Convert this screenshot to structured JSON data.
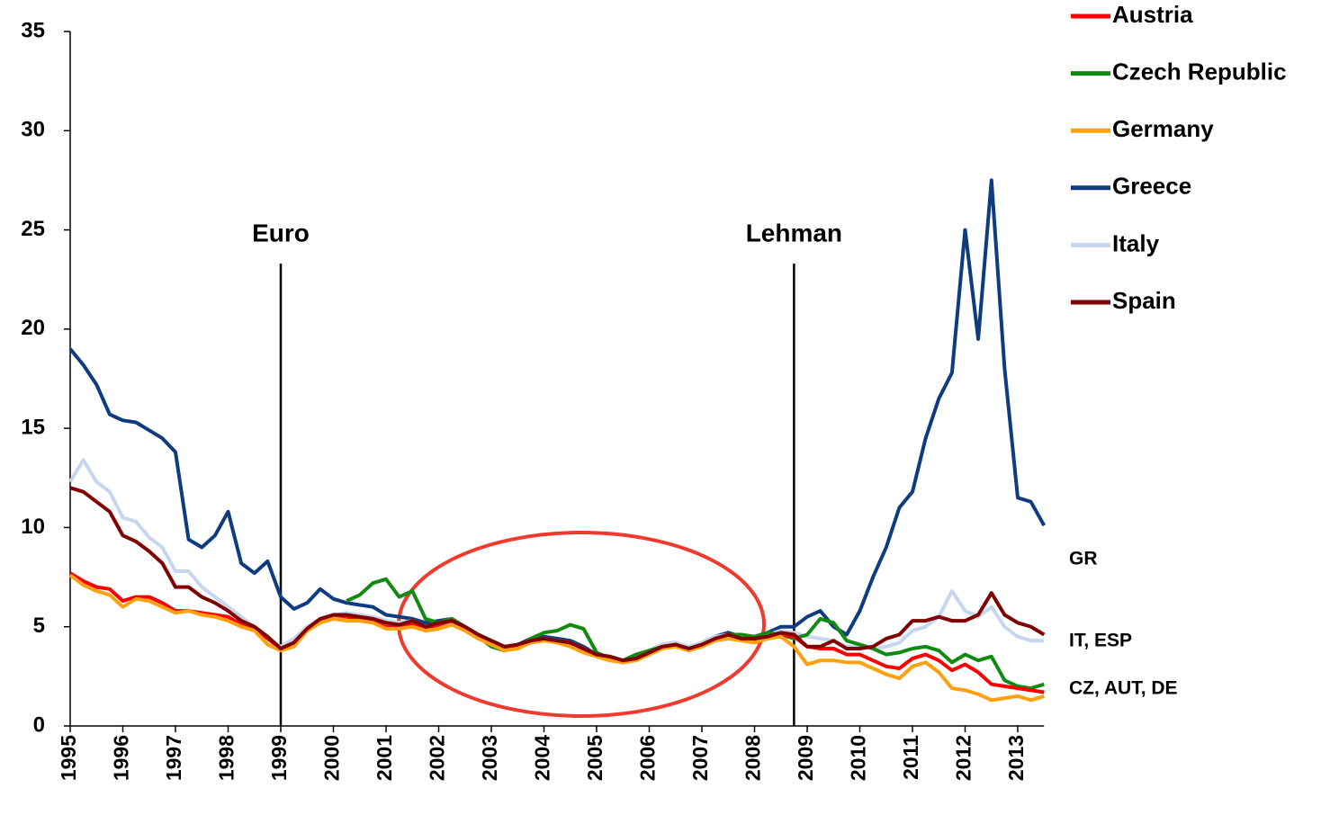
{
  "chart_data": {
    "type": "line",
    "x": [
      1995,
      1995.25,
      1995.5,
      1995.75,
      1996,
      1996.25,
      1996.5,
      1996.75,
      1997,
      1997.25,
      1997.5,
      1997.75,
      1998,
      1998.25,
      1998.5,
      1998.75,
      1999,
      1999.25,
      1999.5,
      1999.75,
      2000,
      2000.25,
      2000.5,
      2000.75,
      2001,
      2001.25,
      2001.5,
      2001.75,
      2002,
      2002.25,
      2002.5,
      2002.75,
      2003,
      2003.25,
      2003.5,
      2003.75,
      2004,
      2004.25,
      2004.5,
      2004.75,
      2005,
      2005.25,
      2005.5,
      2005.75,
      2006,
      2006.25,
      2006.5,
      2006.75,
      2007,
      2007.25,
      2007.5,
      2007.75,
      2008,
      2008.25,
      2008.5,
      2008.75,
      2009,
      2009.25,
      2009.5,
      2009.75,
      2010,
      2010.25,
      2010.5,
      2010.75,
      2011,
      2011.25,
      2011.5,
      2011.75,
      2012,
      2012.25,
      2012.5,
      2012.75,
      2013,
      2013.25,
      2013.5
    ],
    "series": [
      {
        "name": "Austria",
        "color": "#ff0000",
        "values": [
          7.7,
          7.3,
          7.0,
          6.9,
          6.3,
          6.5,
          6.5,
          6.2,
          5.8,
          5.8,
          5.7,
          5.6,
          5.5,
          5.1,
          4.9,
          4.4,
          3.9,
          4.2,
          4.9,
          5.3,
          5.6,
          5.5,
          5.4,
          5.3,
          5.0,
          5.0,
          5.1,
          4.9,
          5.1,
          5.3,
          4.9,
          4.5,
          4.2,
          3.9,
          4.0,
          4.3,
          4.4,
          4.2,
          4.1,
          3.8,
          3.6,
          3.4,
          3.2,
          3.4,
          3.7,
          4.0,
          4.1,
          3.9,
          4.1,
          4.4,
          4.5,
          4.4,
          4.3,
          4.5,
          4.6,
          4.5,
          4.0,
          3.9,
          3.9,
          3.6,
          3.6,
          3.3,
          3.0,
          2.9,
          3.4,
          3.6,
          3.3,
          2.8,
          3.1,
          2.7,
          2.1,
          2.0,
          1.9,
          1.8,
          1.7
        ]
      },
      {
        "name": "Czech Republic",
        "color": "#128a12",
        "values": [
          null,
          null,
          null,
          null,
          null,
          null,
          null,
          null,
          null,
          null,
          null,
          null,
          null,
          null,
          null,
          null,
          null,
          null,
          null,
          null,
          null,
          6.3,
          6.6,
          7.2,
          7.4,
          6.5,
          6.8,
          5.4,
          5.2,
          5.4,
          5.0,
          4.5,
          4.0,
          3.8,
          4.0,
          4.4,
          4.7,
          4.8,
          5.1,
          4.9,
          3.7,
          3.4,
          3.3,
          3.6,
          3.8,
          4.0,
          4.1,
          3.8,
          4.1,
          4.3,
          4.6,
          4.6,
          4.5,
          4.7,
          4.6,
          4.4,
          4.6,
          5.4,
          5.2,
          4.3,
          4.1,
          3.9,
          3.6,
          3.7,
          3.9,
          4.0,
          3.8,
          3.2,
          3.6,
          3.3,
          3.5,
          2.3,
          2.0,
          1.9,
          2.1
        ]
      },
      {
        "name": "Germany",
        "color": "#ffa010",
        "values": [
          7.6,
          7.1,
          6.8,
          6.6,
          6.0,
          6.4,
          6.3,
          6.0,
          5.7,
          5.8,
          5.6,
          5.5,
          5.3,
          5.0,
          4.8,
          4.1,
          3.8,
          4.0,
          4.8,
          5.2,
          5.4,
          5.3,
          5.3,
          5.2,
          4.9,
          4.9,
          5.0,
          4.8,
          4.9,
          5.1,
          4.8,
          4.4,
          4.1,
          3.8,
          3.9,
          4.2,
          4.3,
          4.2,
          4.0,
          3.7,
          3.5,
          3.3,
          3.2,
          3.3,
          3.6,
          3.9,
          4.0,
          3.8,
          4.0,
          4.3,
          4.4,
          4.3,
          4.2,
          4.4,
          4.5,
          4.0,
          3.1,
          3.3,
          3.3,
          3.2,
          3.2,
          2.9,
          2.6,
          2.4,
          3.0,
          3.2,
          2.7,
          1.9,
          1.8,
          1.6,
          1.3,
          1.4,
          1.5,
          1.3,
          1.5
        ]
      },
      {
        "name": "Greece",
        "color": "#0f3c80",
        "values": [
          19,
          18.2,
          17.2,
          15.7,
          15.4,
          15.3,
          14.9,
          14.5,
          13.8,
          9.4,
          9.0,
          9.6,
          10.8,
          8.2,
          7.7,
          8.3,
          6.5,
          5.9,
          6.2,
          6.9,
          6.4,
          6.2,
          6.1,
          6.0,
          5.6,
          5.5,
          5.4,
          5.2,
          5.3,
          5.4,
          5.0,
          4.6,
          4.3,
          4.0,
          4.1,
          4.4,
          4.5,
          4.4,
          4.3,
          4.0,
          3.6,
          3.5,
          3.3,
          3.5,
          3.8,
          4.1,
          4.2,
          3.9,
          4.2,
          4.5,
          4.7,
          4.5,
          4.5,
          4.7,
          5.0,
          5.0,
          5.5,
          5.8,
          5.0,
          4.6,
          5.8,
          7.5,
          9.0,
          11.0,
          11.8,
          14.5,
          16.5,
          17.8,
          25,
          19.5,
          27.5,
          18,
          11.5,
          11.3,
          10.1
        ]
      },
      {
        "name": "Italy",
        "color": "#c5d6ee",
        "values": [
          12.3,
          13.4,
          12.3,
          11.8,
          10.5,
          10.3,
          9.5,
          9.0,
          7.8,
          7.8,
          7.0,
          6.5,
          6.0,
          5.5,
          5.0,
          4.4,
          4.0,
          4.4,
          5.0,
          5.4,
          5.6,
          5.7,
          5.6,
          5.5,
          5.3,
          5.2,
          5.3,
          5.0,
          5.2,
          5.4,
          5.0,
          4.6,
          4.3,
          4.0,
          4.1,
          4.3,
          4.4,
          4.3,
          4.2,
          3.9,
          3.6,
          3.5,
          3.3,
          3.5,
          3.8,
          4.1,
          4.2,
          4.0,
          4.2,
          4.5,
          4.6,
          4.5,
          4.5,
          4.6,
          4.8,
          4.7,
          4.5,
          4.4,
          4.3,
          4.0,
          4.0,
          3.9,
          4.0,
          4.2,
          4.8,
          5.0,
          5.5,
          6.8,
          5.8,
          5.5,
          6.0,
          5.0,
          4.5,
          4.3,
          4.3
        ]
      },
      {
        "name": "Spain",
        "color": "#800000",
        "values": [
          12.0,
          11.8,
          11.3,
          10.8,
          9.6,
          9.3,
          8.8,
          8.2,
          7.0,
          7.0,
          6.5,
          6.2,
          5.8,
          5.3,
          5.0,
          4.5,
          3.9,
          4.2,
          4.9,
          5.4,
          5.6,
          5.6,
          5.5,
          5.4,
          5.2,
          5.1,
          5.3,
          5.0,
          5.2,
          5.3,
          5.0,
          4.6,
          4.3,
          4.0,
          4.1,
          4.3,
          4.4,
          4.3,
          4.2,
          3.9,
          3.6,
          3.5,
          3.3,
          3.4,
          3.7,
          4.0,
          4.1,
          3.9,
          4.1,
          4.4,
          4.6,
          4.4,
          4.4,
          4.5,
          4.7,
          4.6,
          4.0,
          4.0,
          4.3,
          3.9,
          3.9,
          4.0,
          4.4,
          4.6,
          5.3,
          5.3,
          5.5,
          5.3,
          5.3,
          5.6,
          6.7,
          5.6,
          5.2,
          5.0,
          4.6
        ]
      }
    ],
    "xlim": [
      1995,
      2013.5
    ],
    "xticks": [
      1995,
      1996,
      1997,
      1998,
      1999,
      2000,
      2001,
      2002,
      2003,
      2004,
      2005,
      2006,
      2007,
      2008,
      2009,
      2010,
      2011,
      2012,
      2013
    ],
    "ylim": [
      0,
      35
    ],
    "yticks": [
      0,
      5,
      10,
      15,
      20,
      25,
      30,
      35
    ],
    "annotations": [
      {
        "text": "Euro",
        "x": 1999,
        "y": 23.3
      },
      {
        "text": "Lehman",
        "x": 2008.75,
        "y": 23.3
      }
    ],
    "end_labels": [
      "GR",
      "IT, ESP",
      "CZ, AUT, DE"
    ],
    "legend": "upper right"
  }
}
